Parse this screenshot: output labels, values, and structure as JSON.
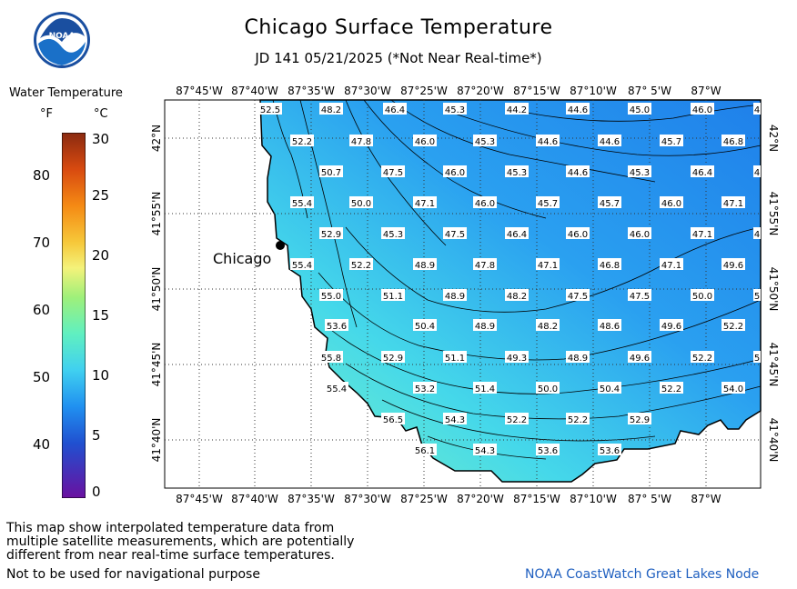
{
  "title": "Chicago Surface Temperature",
  "subtitle": "JD 141 05/21/2025 (*Not Near Real-time*)",
  "legend": {
    "title": "Water Temperature",
    "unit_f": "°F",
    "unit_c": "°C",
    "f_ticks": [
      "80",
      "70",
      "60",
      "50",
      "40"
    ],
    "c_ticks": [
      "30",
      "25",
      "20",
      "15",
      "10",
      "5",
      "0"
    ]
  },
  "map": {
    "lon_labels": [
      "87°45'W",
      "87°40'W",
      "87°35'W",
      "87°30'W",
      "87°25'W",
      "87°20'W",
      "87°15'W",
      "87°10'W",
      "87° 5'W",
      "87°W"
    ],
    "lat_labels": [
      "42°N",
      "41°55'N",
      "41°50'N",
      "41°45'N",
      "41°40'N"
    ],
    "city": "Chicago",
    "temperature_labels": [
      [
        "52.5",
        "48.2",
        "46.4",
        "45.3",
        "44.2",
        "44.6",
        "45.0",
        "46.0",
        "4"
      ],
      [
        "52.2",
        "47.8",
        "46.0",
        "45.3",
        "44.6",
        "44.6",
        "45.7",
        "46.8"
      ],
      [
        "50.7",
        "47.5",
        "46.0",
        "45.3",
        "44.6",
        "45.3",
        "46.4",
        "4"
      ],
      [
        "55.4",
        "50.0",
        "47.1",
        "46.0",
        "45.7",
        "45.7",
        "46.0",
        "47.1"
      ],
      [
        "52.9",
        "45.3",
        "47.5",
        "46.4",
        "46.0",
        "46.0",
        "47.1",
        "4"
      ],
      [
        "55.4",
        "52.2",
        "48.9",
        "47.8",
        "47.1",
        "46.8",
        "47.1",
        "49.6"
      ],
      [
        "55.0",
        "51.1",
        "48.9",
        "48.2",
        "47.5",
        "47.5",
        "50.0",
        "5"
      ],
      [
        "53.6",
        "50.4",
        "48.9",
        "48.2",
        "48.6",
        "49.6",
        "52.2"
      ],
      [
        "55.8",
        "52.9",
        "51.1",
        "49.3",
        "48.9",
        "49.6",
        "52.2",
        "5"
      ],
      [
        "55.4",
        "53.2",
        "51.4",
        "50.0",
        "50.4",
        "52.2",
        "54.0"
      ],
      [
        "56.5",
        "54.3",
        "52.2",
        "52.2",
        "52.9"
      ],
      [
        "56.1",
        "54.3",
        "53.6",
        "53.6"
      ]
    ]
  },
  "disclaimer": [
    "This map show interpolated temperature data from",
    "multiple satellite measurements, which are potentially",
    "different from near real-time surface temperatures."
  ],
  "nav_warning": "Not to be used for navigational purpose",
  "credit": "NOAA CoastWatch Great Lakes Node",
  "colors": {
    "warm": "#6ef3c8",
    "mid": "#2fb4f0",
    "cold": "#1f86ea"
  }
}
